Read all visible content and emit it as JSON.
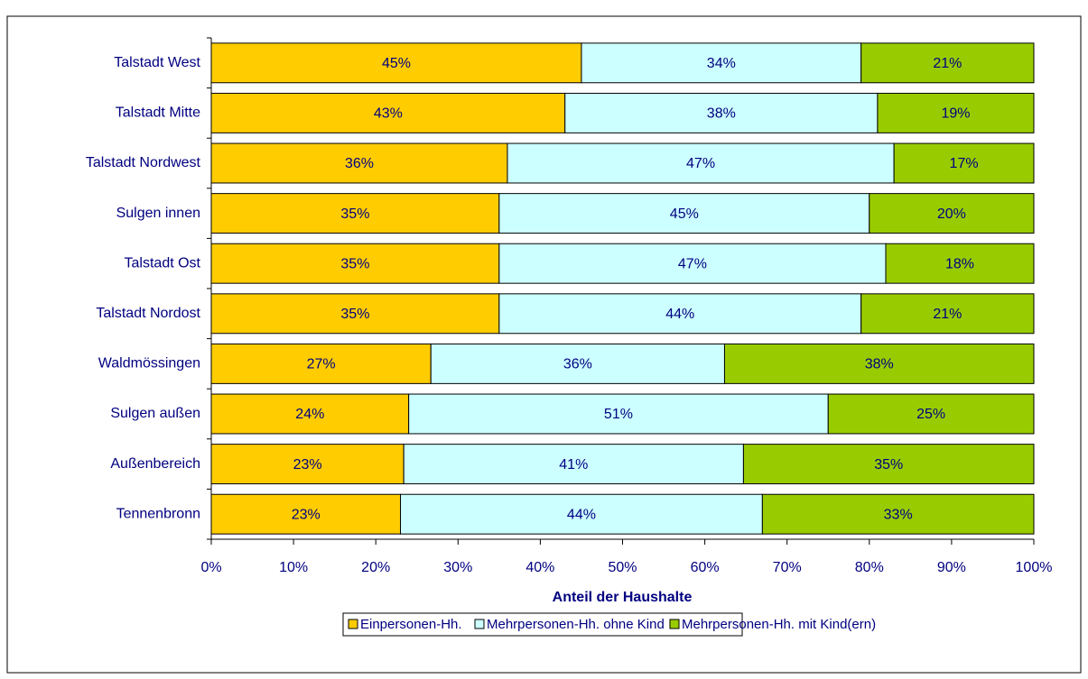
{
  "chart_data": {
    "type": "bar",
    "orientation": "horizontal",
    "stacked": true,
    "categories": [
      "Talstadt West",
      "Talstadt Mitte",
      "Talstadt Nordwest",
      "Sulgen innen",
      "Talstadt Ost",
      "Talstadt Nordost",
      "Waldmössingen",
      "Sulgen außen",
      "Außenbereich",
      "Tennenbronn"
    ],
    "series": [
      {
        "name": "Einpersonen-Hh.",
        "color": "#ffcc00",
        "values": [
          45,
          43,
          36,
          35,
          35,
          35,
          26.7,
          24,
          23.4,
          23
        ],
        "value_labels": [
          "45%",
          "43%",
          "36%",
          "35%",
          "35%",
          "35%",
          "27%",
          "24%",
          "23%",
          "23%"
        ]
      },
      {
        "name": "Mehrpersonen-Hh. ohne Kind",
        "color": "#ccffff",
        "values": [
          34,
          38,
          47,
          45,
          47,
          44,
          35.7,
          51,
          41.3,
          44
        ],
        "value_labels": [
          "34%",
          "38%",
          "47%",
          "45%",
          "47%",
          "44%",
          "36%",
          "51%",
          "41%",
          "44%"
        ]
      },
      {
        "name": "Mehrpersonen-Hh. mit Kind(ern)",
        "color": "#99cc00",
        "values": [
          21,
          19,
          17,
          20,
          18,
          21,
          37.6,
          25,
          35.3,
          33
        ],
        "value_labels": [
          "21%",
          "19%",
          "17%",
          "20%",
          "18%",
          "21%",
          "38%",
          "25%",
          "35%",
          "33%"
        ]
      }
    ],
    "x_label": "Anteil der Haushalte",
    "xlim": [
      0,
      100
    ],
    "xticks": [
      {
        "value": 0,
        "label": "0%"
      },
      {
        "value": 10,
        "label": "10%"
      },
      {
        "value": 20,
        "label": "20%"
      },
      {
        "value": 30,
        "label": "30%"
      },
      {
        "value": 40,
        "label": "40%"
      },
      {
        "value": 50,
        "label": "50%"
      },
      {
        "value": 60,
        "label": "60%"
      },
      {
        "value": 70,
        "label": "70%"
      },
      {
        "value": 80,
        "label": "80%"
      },
      {
        "value": 90,
        "label": "90%"
      },
      {
        "value": 100,
        "label": "100%"
      }
    ],
    "legend": "bottom"
  }
}
